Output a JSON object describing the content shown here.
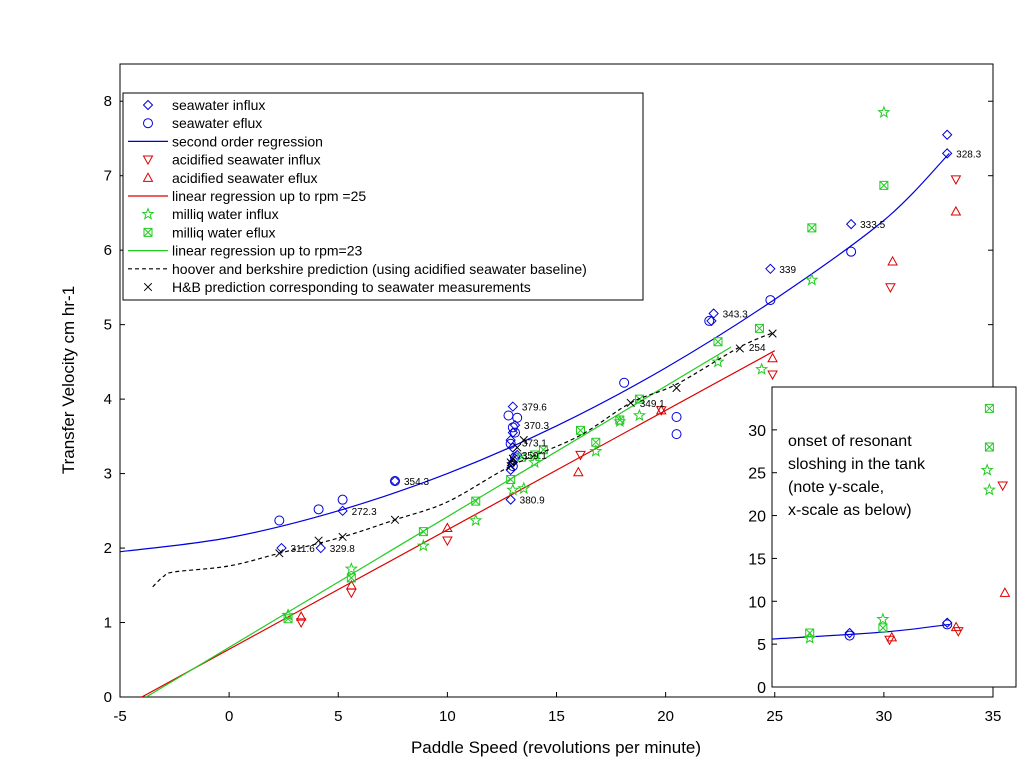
{
  "colors": {
    "seawater": "#0000dd",
    "acidified": "#dd0000",
    "milliq": "#22cc22",
    "prediction": "#000000"
  },
  "chart_data": [
    {
      "type": "scatter",
      "xlabel": "Paddle Speed (revolutions per minute)",
      "ylabel": "Transfer Velocity cm hr-1",
      "xlim": [
        -5,
        35
      ],
      "ylim": [
        0,
        8.5
      ],
      "xticks": [
        -5,
        0,
        5,
        10,
        15,
        20,
        25,
        30,
        35
      ],
      "yticks": [
        0,
        1,
        2,
        3,
        4,
        5,
        6,
        7,
        8
      ],
      "legend_position": "top-left",
      "grid": false,
      "series": [
        {
          "name": "seawater influx",
          "marker": "diamond",
          "color": "#0000dd",
          "x": [
            2.4,
            4.2,
            5.2,
            7.6,
            12.9,
            13.0,
            13.1,
            13.0,
            12.9,
            13.0,
            13.2,
            13.0,
            13.1,
            12.9,
            22.1,
            22.2,
            24.8,
            28.5,
            32.9,
            32.9
          ],
          "y": [
            2.0,
            2.0,
            2.5,
            2.9,
            2.65,
            3.9,
            3.65,
            3.55,
            3.45,
            3.35,
            3.25,
            3.15,
            3.2,
            3.05,
            5.05,
            5.15,
            5.75,
            6.35,
            7.3,
            7.55
          ]
        },
        {
          "name": "seawater eflux",
          "marker": "circle",
          "color": "#0000dd",
          "x": [
            2.3,
            4.1,
            5.2,
            7.6,
            12.8,
            13.2,
            13.0,
            13.1,
            12.9,
            13.1,
            13.0,
            18.1,
            20.5,
            20.5,
            22.0,
            24.8,
            28.5
          ],
          "y": [
            2.37,
            2.52,
            2.65,
            2.9,
            3.78,
            3.75,
            3.62,
            3.55,
            3.4,
            3.22,
            3.1,
            4.22,
            3.76,
            3.53,
            5.05,
            5.33,
            5.98
          ]
        },
        {
          "name": "second order regression",
          "marker": "line",
          "color": "#0000dd",
          "x": [
            -5,
            0,
            5,
            10,
            15,
            20,
            25,
            30,
            33
          ],
          "y": [
            1.95,
            2.14,
            2.5,
            3.0,
            3.64,
            4.42,
            5.34,
            6.4,
            7.3
          ]
        },
        {
          "name": "acidified seawater influx",
          "marker": "triangle-down",
          "color": "#dd0000",
          "x": [
            3.3,
            5.6,
            10.0,
            16.1,
            19.8,
            24.9,
            30.3,
            33.3
          ],
          "y": [
            1.0,
            1.4,
            2.1,
            3.25,
            3.85,
            4.33,
            5.5,
            6.95
          ]
        },
        {
          "name": "acidified seawater eflux",
          "marker": "triangle-up",
          "color": "#dd0000",
          "x": [
            3.3,
            5.6,
            10.0,
            16.0,
            19.8,
            24.9,
            30.4,
            33.3
          ],
          "y": [
            1.08,
            1.5,
            2.27,
            3.02,
            3.85,
            4.55,
            5.85,
            6.52
          ]
        },
        {
          "name": "linear regression up to rpm =25",
          "marker": "line",
          "color": "#dd0000",
          "x": [
            -4,
            25
          ],
          "y": [
            0,
            4.65
          ]
        },
        {
          "name": "milliq water influx",
          "marker": "star",
          "color": "#22cc22",
          "x": [
            2.7,
            5.6,
            8.9,
            11.3,
            13.0,
            13.5,
            14.0,
            16.8,
            17.9,
            18.8,
            22.4,
            24.4,
            26.7,
            30.0
          ],
          "y": [
            1.1,
            1.72,
            2.03,
            2.37,
            2.78,
            2.8,
            3.15,
            3.3,
            3.7,
            3.78,
            4.5,
            4.4,
            5.6,
            7.85
          ]
        },
        {
          "name": "milliq water eflux",
          "marker": "box-x",
          "color": "#22cc22",
          "x": [
            2.7,
            5.6,
            8.9,
            11.3,
            12.9,
            13.4,
            14.0,
            14.4,
            16.1,
            16.8,
            17.9,
            18.8,
            22.4,
            24.3,
            26.7,
            30.0
          ],
          "y": [
            1.05,
            1.6,
            2.22,
            2.63,
            2.92,
            3.22,
            3.25,
            3.32,
            3.58,
            3.42,
            3.72,
            4.0,
            4.77,
            4.95,
            6.3,
            6.87
          ]
        },
        {
          "name": "linear regression up to rpm=23",
          "marker": "line",
          "color": "#22cc22",
          "x": [
            -3.8,
            23
          ],
          "y": [
            0,
            4.7
          ]
        },
        {
          "name": "hoover and berkshire prediction (using acidified seawater baseline)",
          "marker": "dashed-line",
          "color": "#000000",
          "x": [
            -3.5,
            -3,
            -2.5,
            0,
            2.3,
            5.2,
            7.6,
            10,
            12.9,
            16,
            18.4,
            20.5,
            23.4,
            25
          ],
          "y": [
            1.48,
            1.62,
            1.68,
            1.76,
            1.93,
            2.15,
            2.38,
            2.62,
            3.1,
            3.5,
            3.95,
            4.2,
            4.7,
            4.9
          ]
        },
        {
          "name": "H&B prediction corresponding to seawater measurements",
          "marker": "x",
          "color": "#000000",
          "x": [
            2.3,
            4.1,
            5.2,
            7.6,
            12.9,
            12.9,
            13.0,
            13.2,
            13.5,
            18.4,
            20.5,
            23.4,
            24.9
          ],
          "y": [
            1.93,
            2.1,
            2.15,
            2.38,
            3.1,
            3.15,
            3.2,
            3.35,
            3.45,
            3.95,
            4.15,
            4.68,
            4.88
          ]
        }
      ],
      "annotations": [
        {
          "text": "311.6",
          "x": 2.4,
          "y": 2.0
        },
        {
          "text": "329.8",
          "x": 4.2,
          "y": 2.0
        },
        {
          "text": "272.3",
          "x": 5.2,
          "y": 2.5
        },
        {
          "text": "354.3",
          "x": 7.6,
          "y": 2.9
        },
        {
          "text": "379.6",
          "x": 13.0,
          "y": 3.9
        },
        {
          "text": "370.3",
          "x": 13.1,
          "y": 3.65
        },
        {
          "text": "373.1",
          "x": 13.0,
          "y": 3.42
        },
        {
          "text": "359.1",
          "x": 13.0,
          "y": 3.25
        },
        {
          "text": "380.9",
          "x": 12.9,
          "y": 2.65
        },
        {
          "text": "349.1",
          "x": 18.4,
          "y": 3.95
        },
        {
          "text": "343.3",
          "x": 22.2,
          "y": 5.15
        },
        {
          "text": "254",
          "x": 23.4,
          "y": 4.7
        },
        {
          "text": "339",
          "x": 24.8,
          "y": 5.75
        },
        {
          "text": "333.5",
          "x": 28.5,
          "y": 6.35
        },
        {
          "text": "328.3",
          "x": 32.9,
          "y": 7.3
        }
      ]
    },
    {
      "type": "scatter",
      "title": "onset of resonant sloshing in the tank (note y-scale, x-scale as below)",
      "title_lines": [
        "onset of resonant",
        "sloshing in the tank",
        "(note y-scale,",
        "x-scale as below)"
      ],
      "xlim": [
        25,
        36
      ],
      "ylim": [
        0,
        35
      ],
      "yticks": [
        0,
        5,
        10,
        15,
        20,
        25,
        30
      ],
      "legend_position": "none",
      "series": [
        {
          "name": "seawater influx",
          "marker": "diamond",
          "color": "#0000dd",
          "x": [
            28.5,
            32.9
          ],
          "y": [
            6.3,
            7.5
          ]
        },
        {
          "name": "seawater eflux",
          "marker": "circle",
          "color": "#0000dd",
          "x": [
            28.5,
            32.9
          ],
          "y": [
            6.0,
            7.3
          ]
        },
        {
          "name": "second order regression",
          "marker": "line",
          "color": "#0000dd",
          "x": [
            25,
            30,
            33
          ],
          "y": [
            5.6,
            6.4,
            7.3
          ]
        },
        {
          "name": "acidified seawater influx",
          "marker": "triangle-down",
          "color": "#dd0000",
          "x": [
            30.3,
            33.4,
            35.4
          ],
          "y": [
            5.5,
            6.5,
            23.5
          ]
        },
        {
          "name": "acidified seawater eflux",
          "marker": "triangle-up",
          "color": "#dd0000",
          "x": [
            30.4,
            33.3,
            35.5
          ],
          "y": [
            5.8,
            7.0,
            11.0
          ]
        },
        {
          "name": "milliq water influx",
          "marker": "star",
          "color": "#22cc22",
          "x": [
            26.7,
            30.0,
            34.7,
            34.8
          ],
          "y": [
            5.7,
            7.9,
            25.3,
            23.0
          ]
        },
        {
          "name": "milliq water eflux",
          "marker": "box-x",
          "color": "#22cc22",
          "x": [
            26.7,
            30.0,
            34.8,
            34.8
          ],
          "y": [
            6.3,
            6.9,
            32.5,
            28.0
          ]
        }
      ]
    }
  ]
}
